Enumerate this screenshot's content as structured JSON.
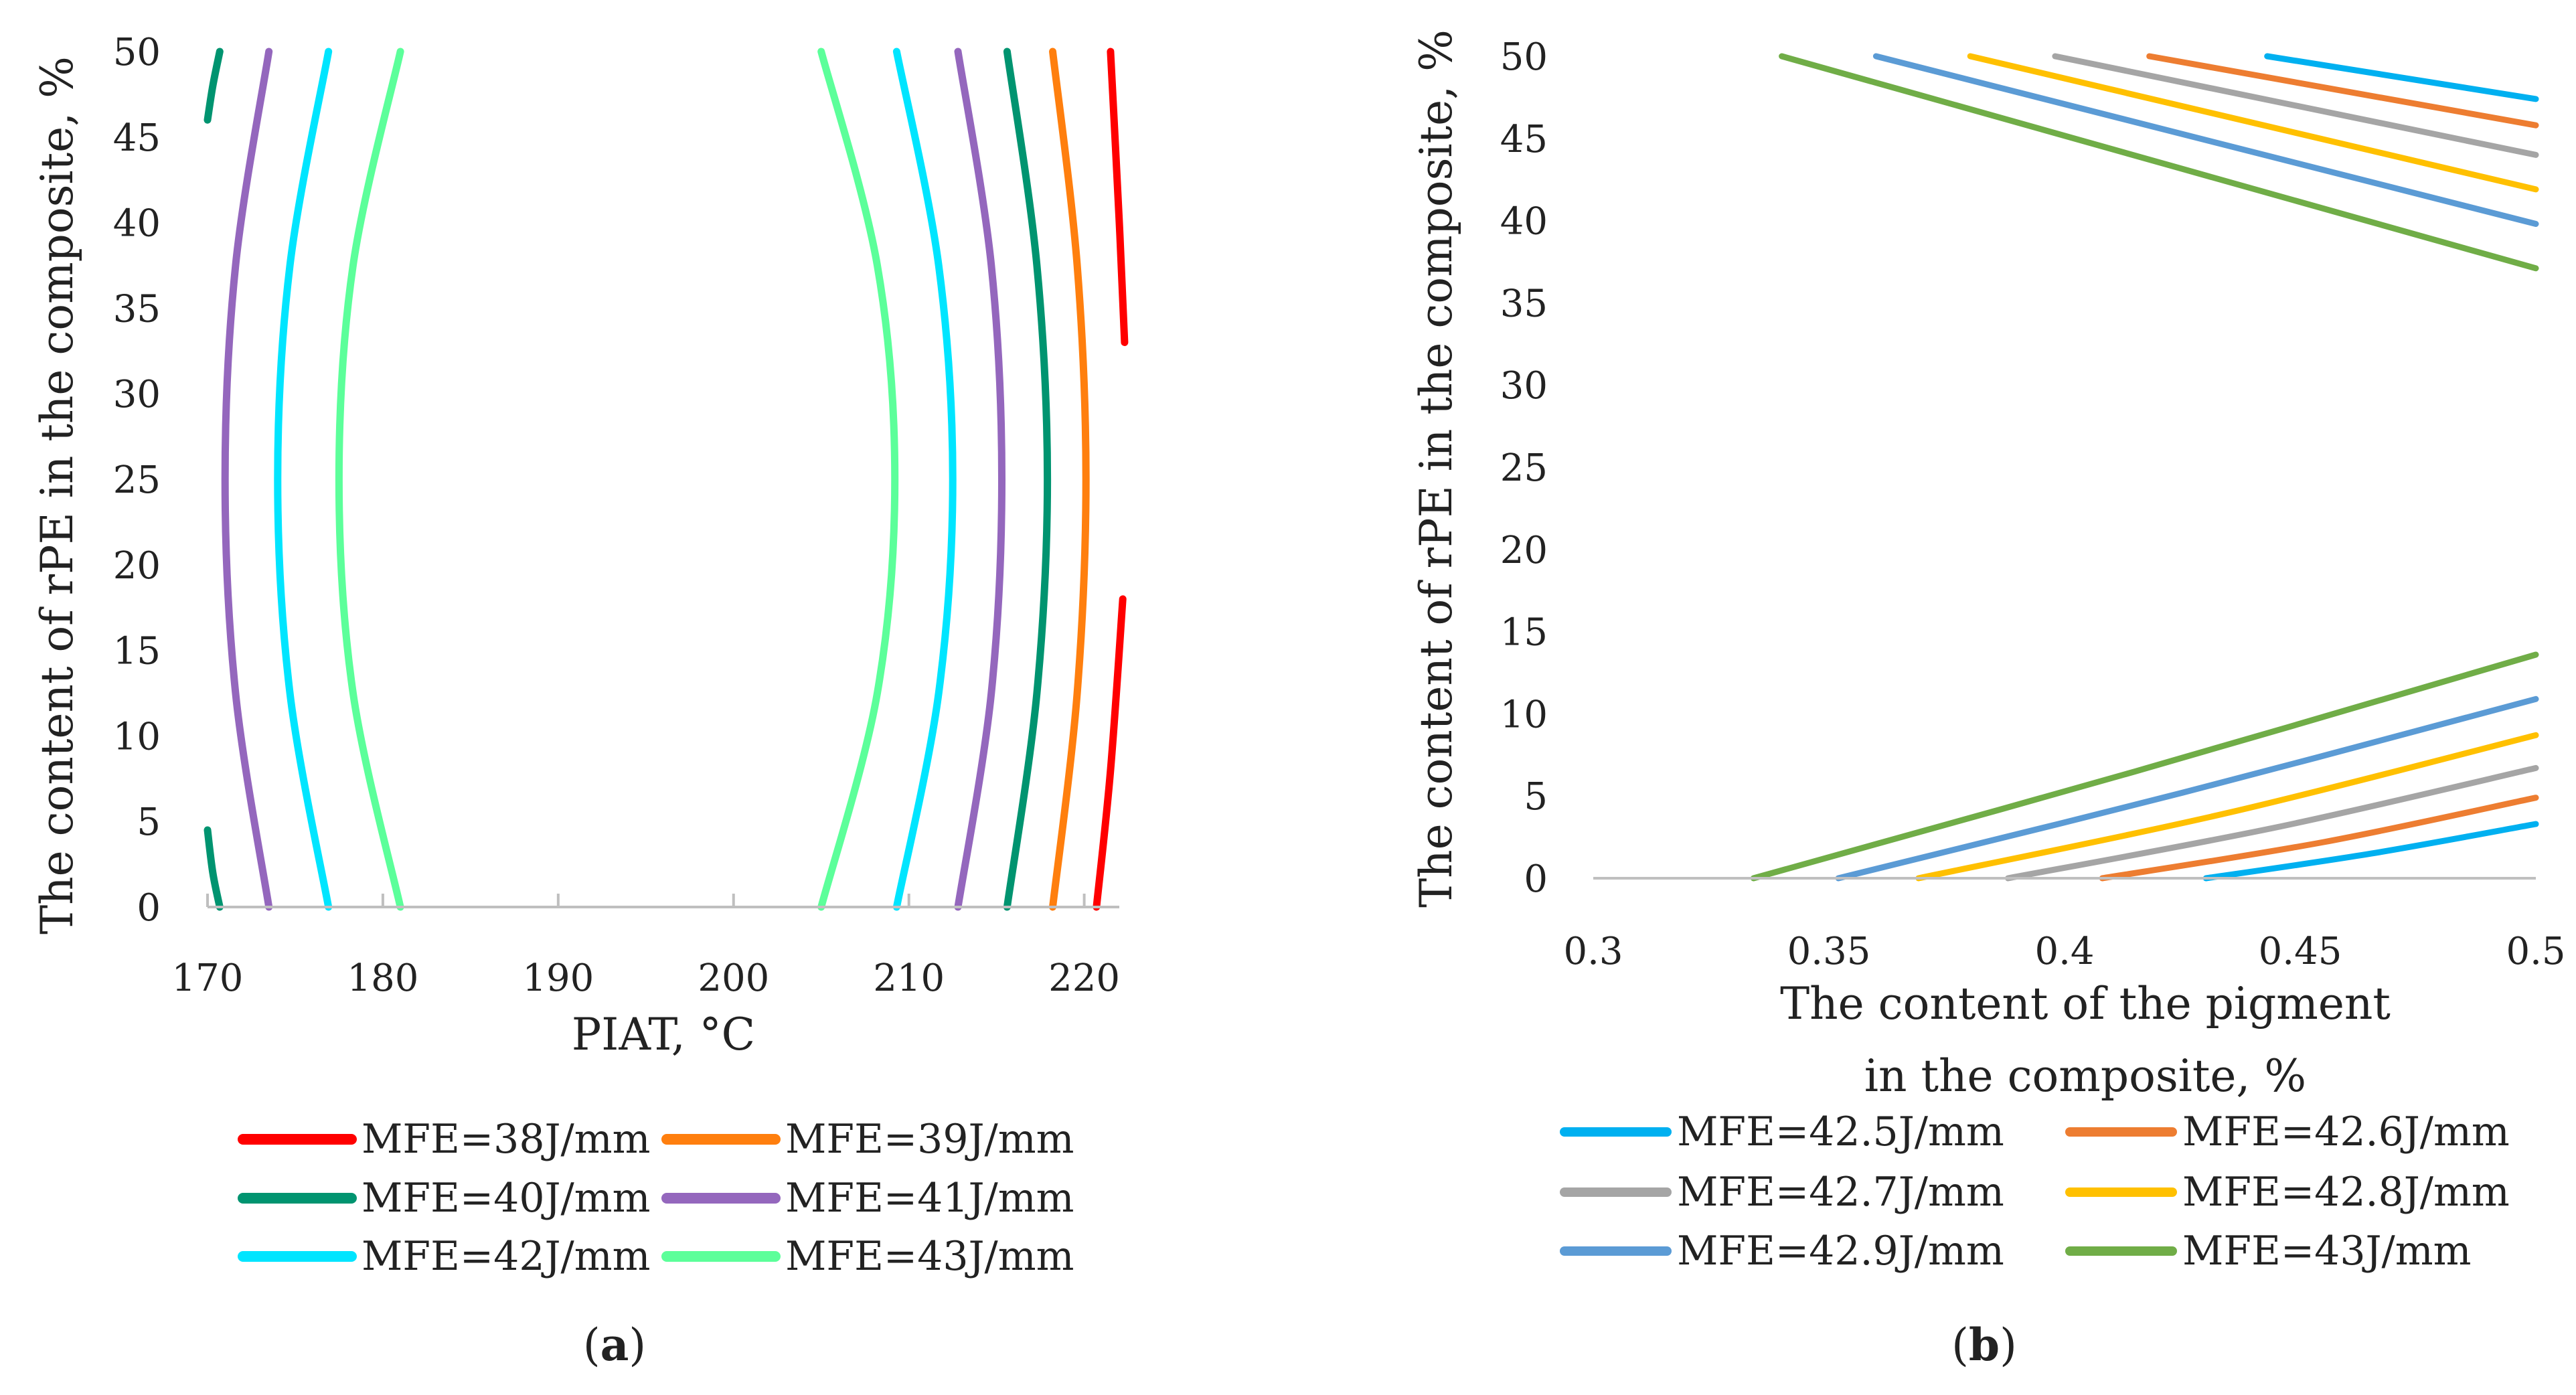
{
  "chart_data": [
    {
      "type": "line",
      "panel_label": "(a)",
      "panel_letter": "a",
      "xlabel": "PIAT, °C",
      "ylabel": "The content of rPE in the composite, %",
      "xlim": [
        170,
        222
      ],
      "ylim": [
        0,
        50
      ],
      "x_ticks": [
        "170",
        "180",
        "190",
        "200",
        "210",
        "220"
      ],
      "y_ticks": [
        "0",
        "5",
        "10",
        "15",
        "20",
        "25",
        "30",
        "35",
        "40",
        "45",
        "50"
      ],
      "grid": false,
      "legend_position": "bottom",
      "series": [
        {
          "name": "MFE=38J/mm",
          "color": "#FF0000",
          "segments": [
            [
              [
                221.5,
                50
              ],
              [
                222.0,
                40
              ],
              [
                222.3,
                33
              ]
            ],
            [
              [
                222.2,
                18
              ],
              [
                221.5,
                8
              ],
              [
                220.7,
                0
              ]
            ]
          ]
        },
        {
          "name": "MFE=39J/mm",
          "color": "#FF7F0E",
          "segments": [
            [
              [
                218.2,
                0
              ],
              [
                219.6,
                12.5
              ],
              [
                220.1,
                25
              ],
              [
                219.6,
                37.5
              ],
              [
                218.2,
                50
              ]
            ]
          ]
        },
        {
          "name": "MFE=40J/mm",
          "color": "#009470",
          "segments": [
            [
              [
                215.6,
                0
              ],
              [
                217.3,
                12.5
              ],
              [
                217.9,
                25
              ],
              [
                217.3,
                37.5
              ],
              [
                215.6,
                50
              ]
            ],
            [
              [
                170.0,
                4.5
              ],
              [
                170.3,
                2
              ],
              [
                170.7,
                0
              ]
            ],
            [
              [
                170.0,
                46.0
              ],
              [
                170.3,
                48
              ],
              [
                170.7,
                50
              ]
            ]
          ]
        },
        {
          "name": "MFE=41J/mm",
          "color": "#9467BD",
          "segments": [
            [
              [
                212.8,
                0
              ],
              [
                214.7,
                12.5
              ],
              [
                215.3,
                25
              ],
              [
                214.7,
                37.5
              ],
              [
                212.8,
                50
              ]
            ],
            [
              [
                173.5,
                0
              ],
              [
                171.6,
                12.5
              ],
              [
                171.0,
                25
              ],
              [
                171.6,
                37.5
              ],
              [
                173.5,
                50
              ]
            ]
          ]
        },
        {
          "name": "MFE=42J/mm",
          "color": "#00E5FF",
          "segments": [
            [
              [
                209.3,
                0
              ],
              [
                211.7,
                12.5
              ],
              [
                212.5,
                25
              ],
              [
                211.7,
                37.5
              ],
              [
                209.3,
                50
              ]
            ],
            [
              [
                176.9,
                0
              ],
              [
                174.7,
                12.5
              ],
              [
                174.0,
                25
              ],
              [
                174.7,
                37.5
              ],
              [
                176.9,
                50
              ]
            ]
          ]
        },
        {
          "name": "MFE=43J/mm",
          "color": "#5CFF9A",
          "segments": [
            [
              [
                205.0,
                0
              ],
              [
                208.2,
                12.5
              ],
              [
                209.2,
                25
              ],
              [
                208.2,
                37.5
              ],
              [
                205.0,
                50
              ]
            ],
            [
              [
                181.0,
                0
              ],
              [
                178.3,
                12.5
              ],
              [
                177.5,
                25
              ],
              [
                178.3,
                37.5
              ],
              [
                181.0,
                50
              ]
            ]
          ]
        }
      ]
    },
    {
      "type": "line",
      "panel_label": "(b)",
      "panel_letter": "b",
      "xlabel_lines": [
        "The content of the pigment",
        "in the composite, %"
      ],
      "ylabel": "The content of rPE in the composite, %",
      "xlim": [
        0.3,
        0.5
      ],
      "ylim": [
        0,
        50
      ],
      "x_ticks": [
        "0.3",
        "0.35",
        "0.4",
        "0.45",
        "0.5"
      ],
      "y_ticks": [
        "0",
        "5",
        "10",
        "15",
        "20",
        "25",
        "30",
        "35",
        "40",
        "45",
        "50"
      ],
      "grid": false,
      "legend_position": "bottom",
      "series": [
        {
          "name": "MFE=42.5J/mm",
          "color": "#00B0F0",
          "segments": [
            [
              [
                0.43,
                0
              ],
              [
                0.465,
                1.5
              ],
              [
                0.5,
                3.3
              ]
            ],
            [
              [
                0.443,
                50
              ],
              [
                0.5,
                47.4
              ]
            ]
          ]
        },
        {
          "name": "MFE=42.6J/mm",
          "color": "#ED7D31",
          "segments": [
            [
              [
                0.408,
                0
              ],
              [
                0.455,
                2.2
              ],
              [
                0.5,
                4.9
              ]
            ],
            [
              [
                0.418,
                50
              ],
              [
                0.5,
                45.8
              ]
            ]
          ]
        },
        {
          "name": "MFE=42.7J/mm",
          "color": "#A5A5A5",
          "segments": [
            [
              [
                0.388,
                0
              ],
              [
                0.445,
                3.1
              ],
              [
                0.5,
                6.7
              ]
            ],
            [
              [
                0.398,
                50
              ],
              [
                0.5,
                44.0
              ]
            ]
          ]
        },
        {
          "name": "MFE=42.8J/mm",
          "color": "#FFC000",
          "segments": [
            [
              [
                0.369,
                0
              ],
              [
                0.435,
                4.0
              ],
              [
                0.5,
                8.7
              ]
            ],
            [
              [
                0.38,
                50
              ],
              [
                0.5,
                41.9
              ]
            ]
          ]
        },
        {
          "name": "MFE=42.9J/mm",
          "color": "#5B9BD5",
          "segments": [
            [
              [
                0.352,
                0
              ],
              [
                0.425,
                5.2
              ],
              [
                0.5,
                10.9
              ]
            ],
            [
              [
                0.36,
                50
              ],
              [
                0.5,
                39.8
              ]
            ]
          ]
        },
        {
          "name": "MFE=43J/mm",
          "color": "#70AD47",
          "segments": [
            [
              [
                0.334,
                0
              ],
              [
                0.415,
                6.5
              ],
              [
                0.5,
                13.6
              ]
            ],
            [
              [
                0.34,
                50
              ],
              [
                0.5,
                37.1
              ]
            ]
          ]
        }
      ]
    }
  ]
}
